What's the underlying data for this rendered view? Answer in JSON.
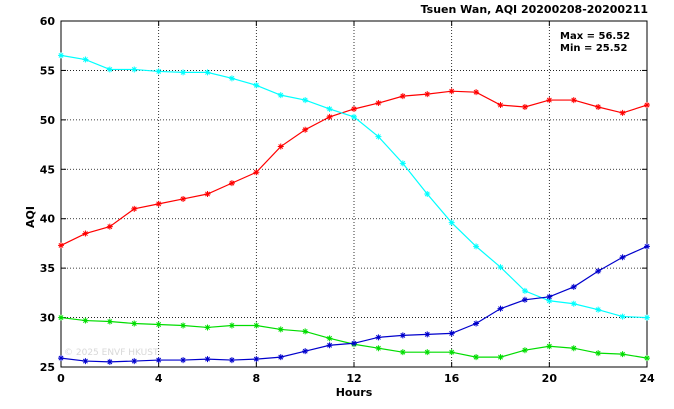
{
  "chart_data": {
    "type": "line",
    "title": "Tsuen Wan, AQI 20200208-20200211",
    "xlabel": "Hours",
    "ylabel": "AQI",
    "xlim": [
      0,
      24
    ],
    "ylim": [
      25,
      60
    ],
    "xticks": [
      0,
      4,
      8,
      12,
      16,
      20,
      24
    ],
    "yticks": [
      25,
      30,
      35,
      40,
      45,
      50,
      55,
      60
    ],
    "grid": true,
    "stats": {
      "max_label": "Max = 56.52",
      "min_label": "Min = 25.52"
    },
    "watermark": "© 2025 ENVF HKUST",
    "x": [
      0,
      1,
      2,
      3,
      4,
      5,
      6,
      7,
      8,
      9,
      10,
      11,
      12,
      13,
      14,
      15,
      16,
      17,
      18,
      19,
      20,
      21,
      22,
      23,
      24
    ],
    "series": [
      {
        "color": "#ff0000",
        "values": [
          37.3,
          38.5,
          39.2,
          41.0,
          41.5,
          42.0,
          42.5,
          43.6,
          44.7,
          47.3,
          49.0,
          50.3,
          51.1,
          51.7,
          52.4,
          52.6,
          52.9,
          52.8,
          51.5,
          51.3,
          52.0,
          52.0,
          51.3,
          50.7,
          51.5
        ]
      },
      {
        "color": "#00ffff",
        "values": [
          56.52,
          56.1,
          55.1,
          55.1,
          54.9,
          54.8,
          54.8,
          54.2,
          53.5,
          52.5,
          52.0,
          51.1,
          50.3,
          48.3,
          45.6,
          42.5,
          39.6,
          37.2,
          35.1,
          32.7,
          31.7,
          31.4,
          30.8,
          30.1,
          30.0
        ]
      },
      {
        "color": "#00dd00",
        "values": [
          30.0,
          29.7,
          29.6,
          29.4,
          29.3,
          29.2,
          29.0,
          29.2,
          29.2,
          28.8,
          28.6,
          27.9,
          27.3,
          26.9,
          26.5,
          26.5,
          26.5,
          26.0,
          26.0,
          26.7,
          27.1,
          26.9,
          26.4,
          26.3,
          25.9
        ]
      },
      {
        "color": "#0000cc",
        "values": [
          25.9,
          25.6,
          25.52,
          25.6,
          25.7,
          25.7,
          25.8,
          25.7,
          25.8,
          26.0,
          26.6,
          27.2,
          27.4,
          28.0,
          28.2,
          28.3,
          28.4,
          29.4,
          30.9,
          31.8,
          32.1,
          33.1,
          34.7,
          36.1,
          37.2
        ]
      }
    ]
  }
}
